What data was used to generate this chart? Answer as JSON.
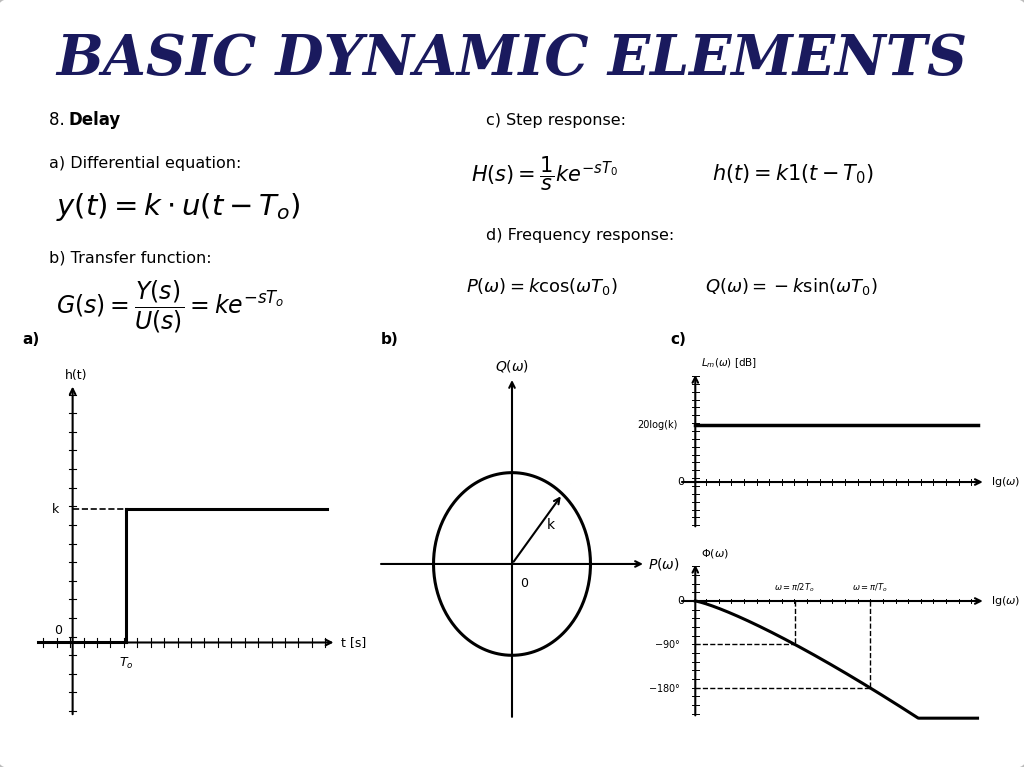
{
  "title": "BASIC DYNAMIC ELEMENTS",
  "bg_color": "#f0f0f0",
  "title_color": "#1a1a5e",
  "text_color": "#000000",
  "label_8": "8.",
  "label_delay": "Delay",
  "label_a_text": "a) Differential equation:",
  "label_b_text": "b) Transfer function:",
  "label_c_text": "c) Step response:",
  "label_d_text": "d) Frequency response:",
  "subplot_a": "a)",
  "subplot_b": "b)",
  "subplot_c": "c)"
}
